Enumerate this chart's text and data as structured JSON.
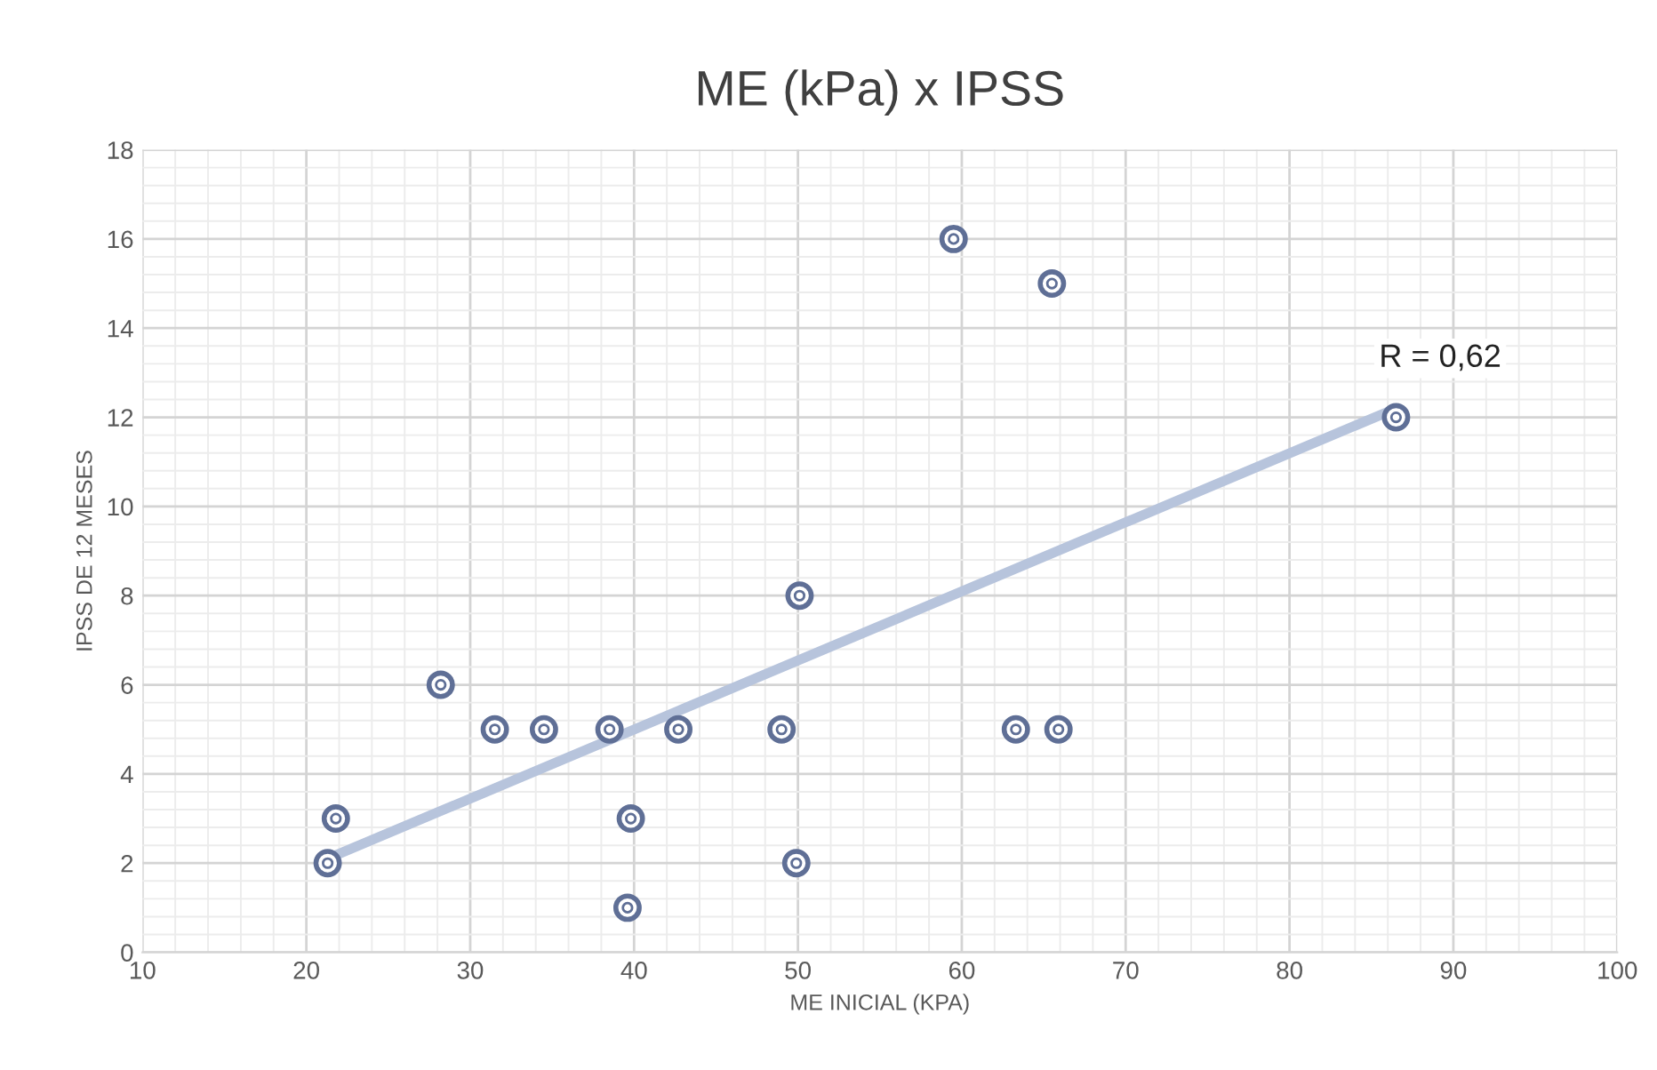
{
  "chart_data": {
    "type": "scatter",
    "title": "ME (kPa) x IPSS",
    "xlabel": "ME INICIAL (KPA)",
    "ylabel": "IPSS DE 12 MESES",
    "series": [
      {
        "marker": "circle",
        "color": "#5f6f96",
        "x": [
          21.3,
          21.8,
          28.2,
          31.5,
          34.5,
          38.5,
          39.8,
          39.6,
          42.7,
          49.0,
          50.1,
          49.9,
          59.5,
          65.5,
          63.3,
          65.9,
          86.5
        ],
        "values": [
          2,
          3,
          6,
          5,
          5,
          5,
          3,
          1,
          5,
          5,
          8,
          2,
          16,
          15,
          5,
          5,
          12
        ]
      },
      {
        "type": "line",
        "color": "#b7c4dc",
        "x": [
          21.3,
          86.5
        ],
        "values": [
          2.1,
          12.2
        ]
      }
    ],
    "annotations": [
      "R = 0,62"
    ],
    "xlim": [
      10,
      100
    ],
    "xticks": [
      10,
      20,
      30,
      40,
      50,
      60,
      70,
      80,
      90,
      100
    ],
    "ylim": [
      0,
      18
    ],
    "yticks": [
      0,
      2,
      4,
      6,
      8,
      10,
      12,
      14,
      16,
      18
    ],
    "grid": true,
    "legend": false
  }
}
